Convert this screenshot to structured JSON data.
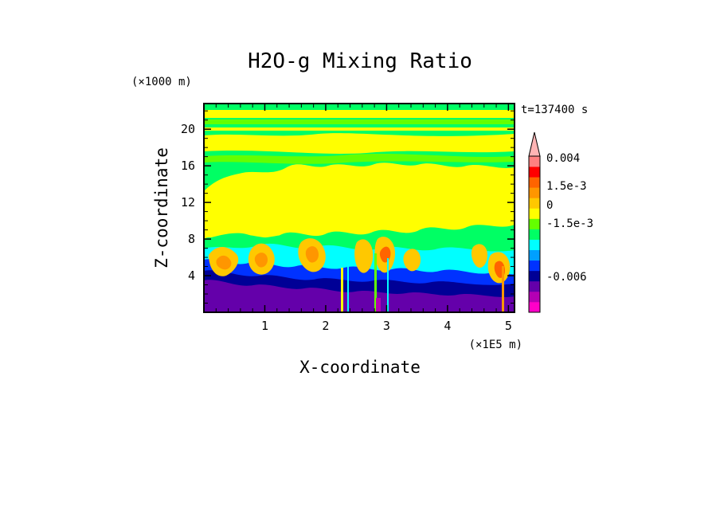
{
  "chart_data": {
    "type": "heatmap",
    "title": "H2O-g Mixing Ratio",
    "xlabel": "X-coordinate",
    "ylabel": "Z-coordinate",
    "x_unit": "(×1E5 m)",
    "y_unit": "(×1000 m)",
    "time_label": "t=137400 s",
    "xlim": [
      0.0,
      5.1
    ],
    "ylim": [
      0.0,
      22.8
    ],
    "x_ticks": [
      1,
      2,
      3,
      4,
      5
    ],
    "y_ticks": [
      4,
      8,
      12,
      16,
      20
    ],
    "x_tick_labels": [
      "1",
      "2",
      "3",
      "4",
      "5"
    ],
    "y_tick_labels": [
      "4",
      "8",
      "12",
      "16",
      "20"
    ],
    "colorbar": {
      "colors": [
        "#ff00c8",
        "#b400b4",
        "#6400aa",
        "#000096",
        "#0032ff",
        "#00a0ff",
        "#00ffff",
        "#00ff64",
        "#64ff00",
        "#ffff00",
        "#ffc800",
        "#ff9600",
        "#ff6400",
        "#ff0000",
        "#ff8080",
        "#ffb4b4"
      ],
      "labels": [
        {
          "text": "0.004",
          "value": 0.004
        },
        {
          "text": "1.5e-3",
          "value": 0.0015
        },
        {
          "text": "0",
          "value": 0
        },
        {
          "text": "-1.5e-3",
          "value": -0.0015
        },
        {
          "text": "-0.006",
          "value": -0.006
        }
      ],
      "extend": "max"
    },
    "layers": [
      {
        "band": "lowest",
        "z_range": [
          0,
          2
        ],
        "color": "#6400aa"
      },
      {
        "band": "lower",
        "z_range": [
          2,
          6
        ],
        "color": "#0032ff"
      },
      {
        "band": "mid-low",
        "z_range": [
          6,
          9.5
        ],
        "color": "#00ffff"
      },
      {
        "band": "mid",
        "z_range": [
          9.5,
          16
        ],
        "color": "#ffff00"
      },
      {
        "band": "upper",
        "z_range": [
          16,
          19
        ],
        "color": "#00ff64"
      },
      {
        "band": "top",
        "z_range": [
          19,
          22.8
        ],
        "color": "#ffff00"
      }
    ]
  }
}
